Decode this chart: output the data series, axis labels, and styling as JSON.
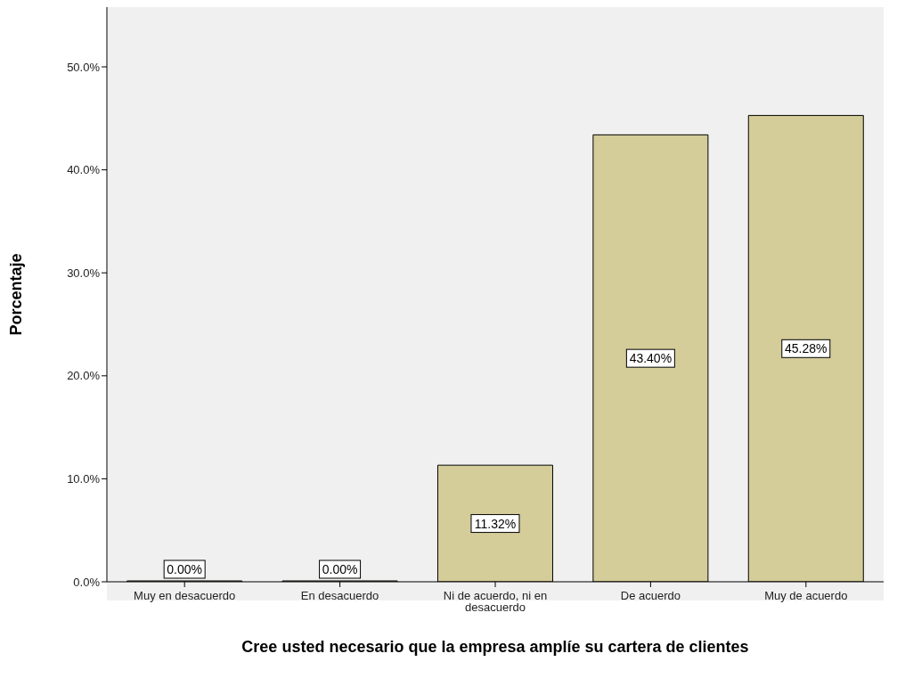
{
  "chart_data": {
    "type": "bar",
    "xlabel": "Cree usted  necesario que la empresa amplíe su cartera de clientes",
    "ylabel": "Porcentaje",
    "categories": [
      "Muy en desacuerdo",
      "En desacuerdo",
      "Ni de acuerdo, ni en desacuerdo",
      "De acuerdo",
      "Muy de acuerdo"
    ],
    "values": [
      0,
      0,
      11.32,
      43.4,
      45.28
    ],
    "value_labels": [
      "0.00%",
      "0.00%",
      "11.32%",
      "43.40%",
      "45.28%"
    ],
    "color": "#d4cc99",
    "ylim": [
      0,
      55.8
    ],
    "yticks": [
      {
        "value": 0,
        "label": "0.0%"
      },
      {
        "value": 10,
        "label": "10.0%"
      },
      {
        "value": 20,
        "label": "20.0%"
      },
      {
        "value": 30,
        "label": "30.0%"
      },
      {
        "value": 40,
        "label": "40.0%"
      },
      {
        "value": 50,
        "label": "50.0%"
      }
    ],
    "grid": false,
    "legend": false
  }
}
